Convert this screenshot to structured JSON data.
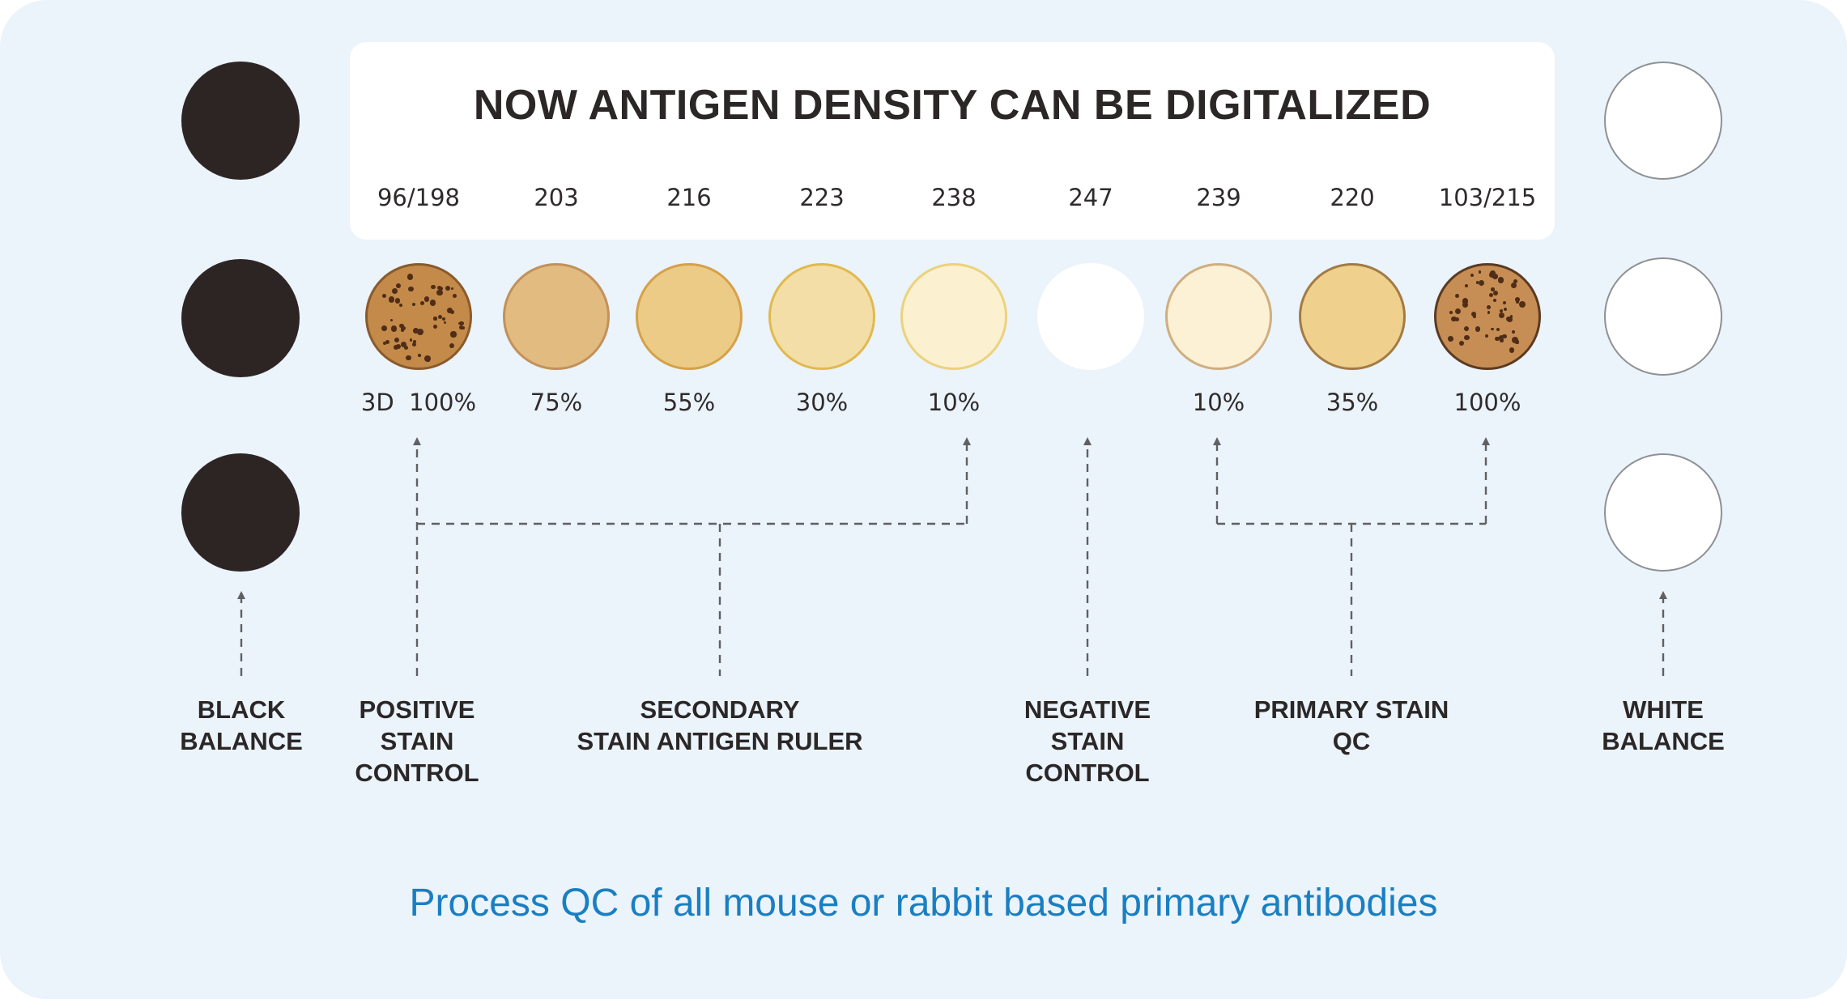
{
  "title": "NOW ANTIGEN DENSITY CAN BE DIGITALIZED",
  "swatches": [
    {
      "value": "96/198",
      "percent_prefix": "3D",
      "percent": "100%",
      "fill": "#c38a4a",
      "border": "#8a5a2b",
      "textured": true
    },
    {
      "value": "203",
      "percent": "75%",
      "fill": "#e2bb80",
      "border": "#c2915a",
      "textured": false
    },
    {
      "value": "216",
      "percent": "55%",
      "fill": "#eccb87",
      "border": "#d5a149",
      "textured": false
    },
    {
      "value": "223",
      "percent": "30%",
      "fill": "#f2dea6",
      "border": "#e1b94e",
      "textured": false
    },
    {
      "value": "238",
      "percent": "10%",
      "fill": "#fbf0cf",
      "border": "#ecd27c",
      "textured": false
    },
    {
      "value": "247",
      "percent": "",
      "fill": "#ffffff",
      "border": "#ffffff",
      "textured": false
    },
    {
      "value": "239",
      "percent": "10%",
      "fill": "#fcf0d5",
      "border": "#cfae7e",
      "textured": false
    },
    {
      "value": "220",
      "percent": "35%",
      "fill": "#efd08d",
      "border": "#a27b43",
      "textured": false
    },
    {
      "value": "103/215",
      "percent": "100%",
      "fill": "#c68e54",
      "border": "#5b3a22",
      "textured": true
    }
  ],
  "colors": {
    "black_balance": "#2d2524",
    "white_balance": "#ffffff",
    "background": "#ebf3fb",
    "accent_text": "#1a7fc1",
    "connector": "#5f6063"
  },
  "categories": {
    "black_balance": "BLACK\nBALANCE",
    "positive_control": "POSITIVE\nSTAIN\nCONTROL",
    "secondary_ruler": "SECONDARY\nSTAIN ANTIGEN RULER",
    "negative_control": "NEGATIVE\nSTAIN\nCONTROL",
    "primary_qc": "PRIMARY STAIN\nQC",
    "white_balance": "WHITE\nBALANCE"
  },
  "footer": "Process QC of all mouse or rabbit based primary antibodies"
}
